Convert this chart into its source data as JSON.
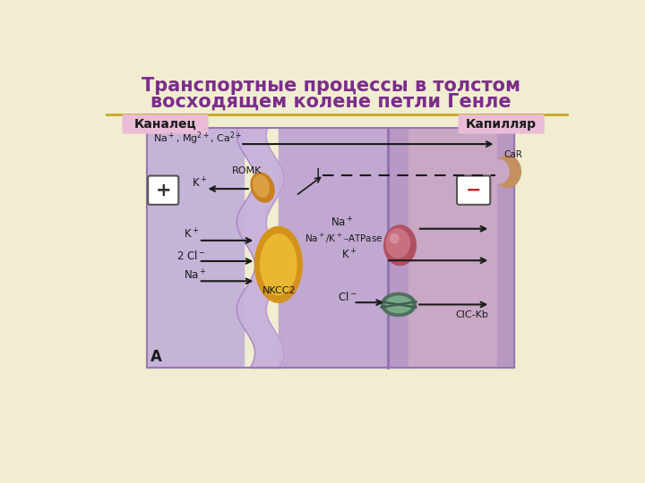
{
  "title_line1": "Транспортные процессы в толстом",
  "title_line2": "восходящем колене петли Генле",
  "title_color": "#7B2D8B",
  "bg_color": "#F0EDD0",
  "label_kanalec": "Каналец",
  "label_kapillyar": "Капилляр",
  "label_bg": "#EBC8DC",
  "header_line_color": "#C8A820",
  "text_color": "#1A1A1A",
  "lumen_color": "#BEB0D0",
  "cell_color": "#C8A8D0",
  "basolateral_color": "#C0A0C8",
  "capillary_color": "#D4B8D4",
  "wall_color": "#B898C8",
  "nkcc2_outer": "#D4921A",
  "nkcc2_inner": "#E8B830",
  "romk_outer": "#C88020",
  "romk_inner": "#DCA040",
  "atpase_outer": "#B05060",
  "atpase_inner": "#C87080",
  "clckb_outer": "#507060",
  "clckb_inner": "#78A888",
  "car_color": "#C09060",
  "plus_box_bg": "#FFFFFF",
  "minus_box_bg": "#FFFFFF",
  "minus_color": "#CC2222"
}
